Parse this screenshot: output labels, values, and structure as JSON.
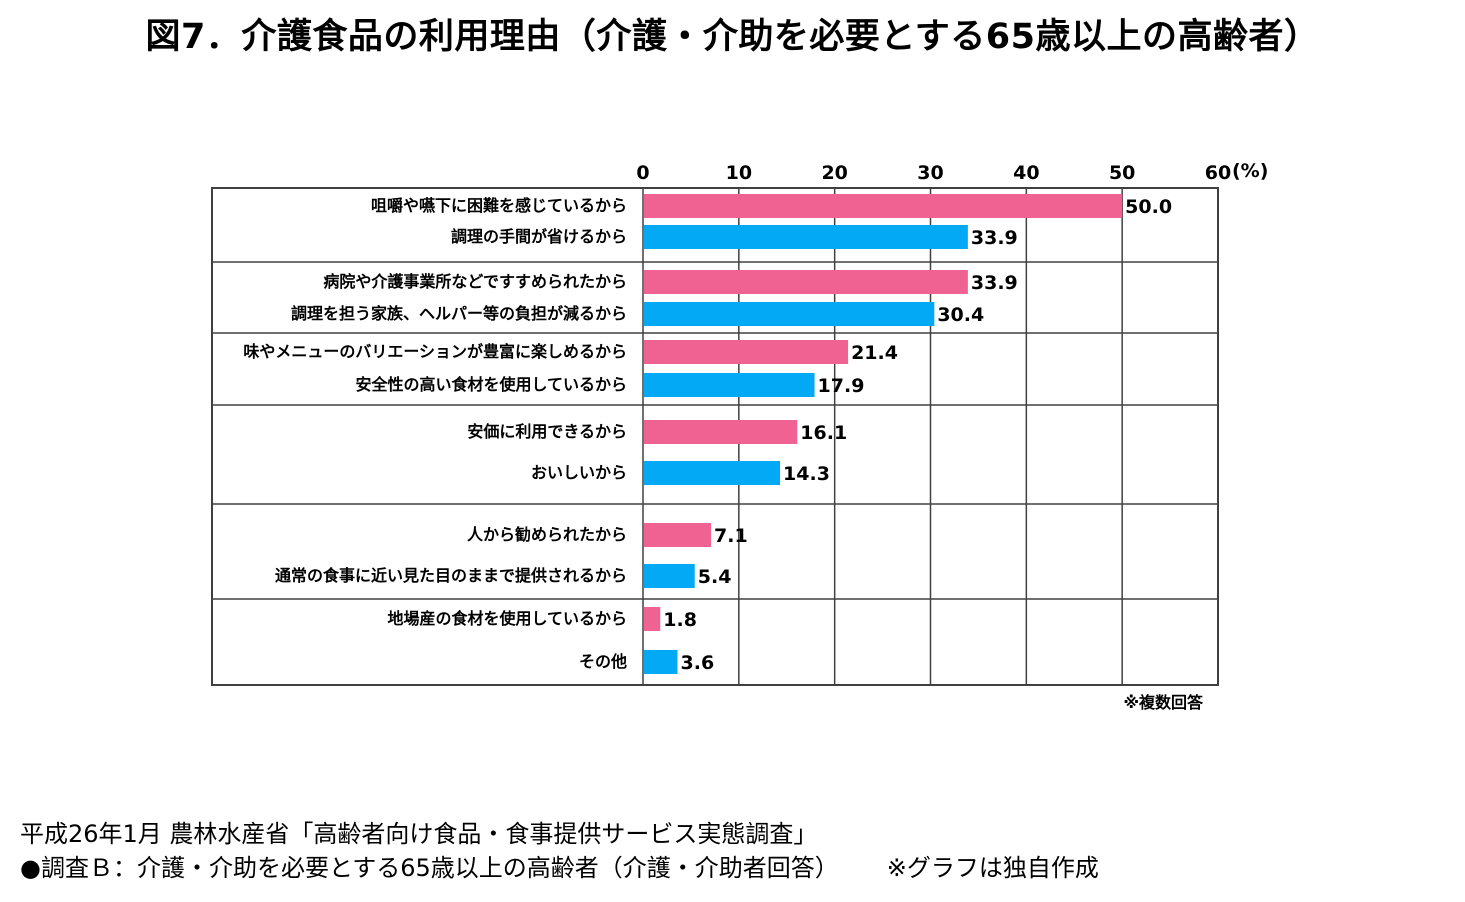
{
  "chart_data": {
    "type": "bar",
    "orientation": "horizontal",
    "title": "図7．介護食品の利用理由（介護・介助を必要とする65歳以上の高齢者）",
    "unit_label": "(%)",
    "xlim": [
      0,
      60
    ],
    "ticks": [
      "0",
      "10",
      "20",
      "30",
      "40",
      "50",
      "60"
    ],
    "categories": [
      "咀嚼や嚥下に困難を感じているから",
      "調理の手間が省けるから",
      "病院や介護事業所などですすめられたから",
      "調理を担う家族、ヘルパー等の負担が減るから",
      "味やメニューのバリエーションが豊富に楽しめるから",
      "安全性の高い食材を使用しているから",
      "安価に利用できるから",
      "おいしいから",
      "人から勧められたから",
      "通常の食事に近い見た目のままで提供されるから",
      "地場産の食材を使用しているから",
      "その他"
    ],
    "values": [
      50.0,
      33.9,
      33.9,
      30.4,
      21.4,
      17.9,
      16.1,
      14.3,
      7.1,
      5.4,
      1.8,
      3.6
    ],
    "value_labels": [
      "50.0",
      "33.9",
      "33.9",
      "30.4",
      "21.4",
      "17.9",
      "16.1",
      "14.3",
      "7.1",
      "5.4",
      "1.8",
      "3.6"
    ],
    "bar_colors": [
      "#f06292",
      "#03a9f4"
    ],
    "groups": 6,
    "grid": true,
    "note": "※複数回答"
  },
  "footer": {
    "line1": "平成26年1月 農林水産省「高齢者向け食品・食事提供サービス実態調査」",
    "line2_left": "●調査Ｂ：介護・介助を必要とする65歳以上の高齢者（介護・介助者回答）",
    "line2_right": "※グラフは独自作成"
  }
}
